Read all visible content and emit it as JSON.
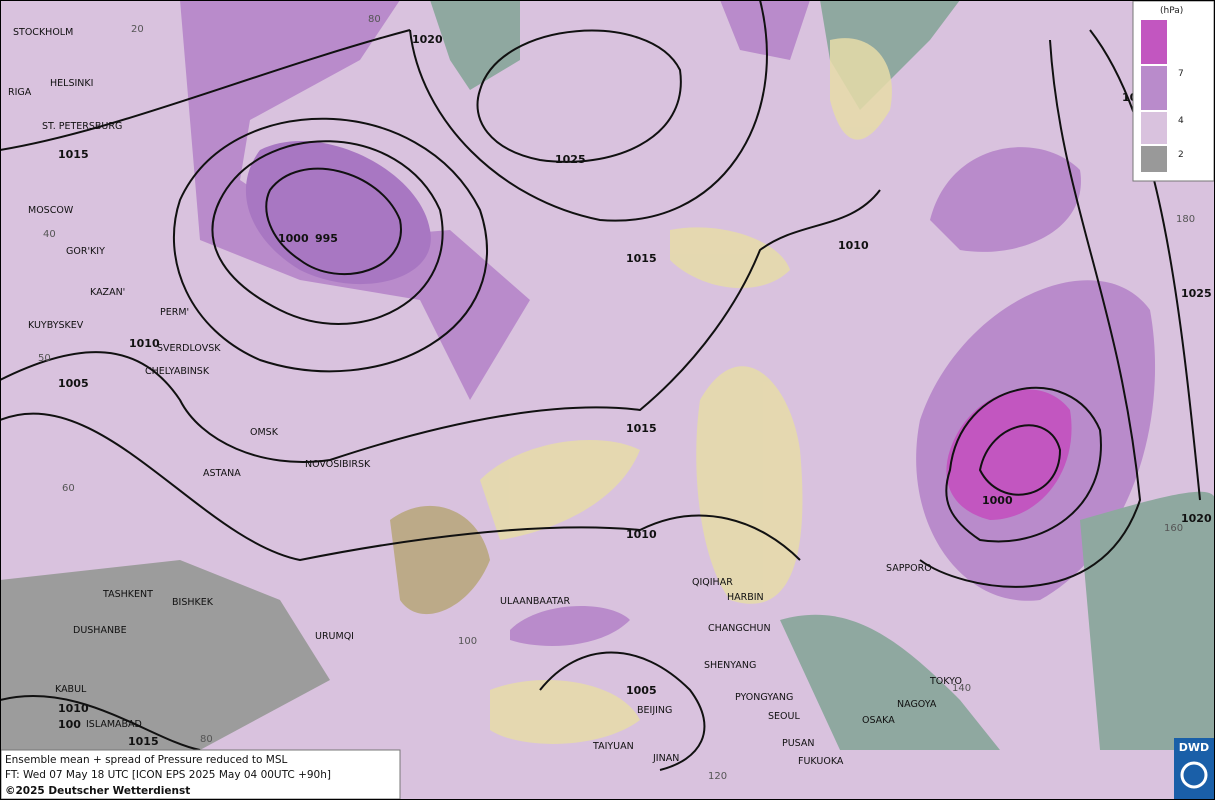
{
  "map": {
    "cities": [
      "STOCKHOLM",
      "HELSINKI",
      "RIGA",
      "ST. PETERSBURG",
      "MOSCOW",
      "GOR'KIY",
      "KAZAN'",
      "PERM'",
      "KUYBYSKEV",
      "SVERDLOVSK",
      "CHELYABINSK",
      "OMSK",
      "NOVOSIBIRSK",
      "ASTANA",
      "TASHKENT",
      "BISHKEK",
      "DUSHANBE",
      "URUMQI",
      "KABUL",
      "ISLAMABAD",
      "ULAANBAATAR",
      "QIQIHAR",
      "HARBIN",
      "CHANGCHUN",
      "SHENYANG",
      "PYONGYANG",
      "SEOUL",
      "BEIJING",
      "TAIYUAN",
      "JINAN",
      "PUSAN",
      "FUKUOKA",
      "SAPPORO",
      "TOKYO",
      "NAGOYA",
      "OSAKA"
    ],
    "isobars": [
      "1020",
      "1025",
      "1015",
      "1000",
      "995",
      "1015",
      "1010",
      "1010",
      "1005",
      "1015",
      "1010",
      "1000",
      "1025",
      "1020",
      "1005",
      "1010",
      "100",
      "1015",
      "10"
    ],
    "graticule": [
      "20",
      "80",
      "40",
      "50",
      "60",
      "100",
      "80",
      "120",
      "180",
      "160",
      "140"
    ]
  },
  "legend": {
    "unit": "(hPa)",
    "levels": [
      "7",
      "4",
      "2"
    ]
  },
  "footer": {
    "line1": "Ensemble mean + spread of Pressure reduced to MSL",
    "line2": "FT: Wed 07 May 18 UTC [ICON EPS 2025 May 04 00UTC +90h]",
    "line3": "©2025 Deutscher Wetterdienst"
  },
  "logo": "DWD"
}
